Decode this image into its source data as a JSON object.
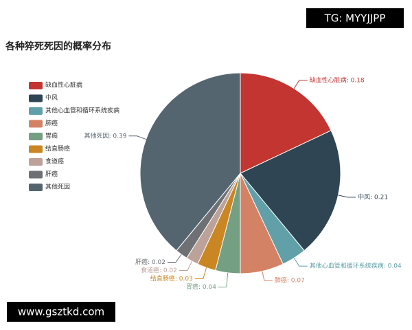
{
  "chart_data": {
    "type": "pie",
    "title": "各种猝死死因的概率分布",
    "categories": [
      "缺血性心脏病",
      "中风",
      "其他心血管和循环系统疾病",
      "肺癌",
      "胃癌",
      "结直肠癌",
      "食道癌",
      "肝癌",
      "其他死因"
    ],
    "values": [
      0.18,
      0.21,
      0.04,
      0.07,
      0.04,
      0.03,
      0.02,
      0.02,
      0.39
    ],
    "value_labels": [
      "缺血性心脏病: 0.18",
      "中风: 0.21",
      "其他心血管和循环系统疾病: 0.04",
      "肺癌: 0.07",
      "胃癌: 0.04",
      "结直肠癌: 0.03",
      "食道癌: 0.02",
      "肝癌: 0.02",
      "其他死因: 0.39"
    ],
    "colors": [
      "#c23531",
      "#2f4554",
      "#61a0a8",
      "#d48265",
      "#749f83",
      "#ca8622",
      "#bda29a",
      "#6e7074",
      "#546570"
    ],
    "legend": "left"
  },
  "watermarks": [
    "TG: MYYJJPP",
    "www.gsztkd.com"
  ]
}
